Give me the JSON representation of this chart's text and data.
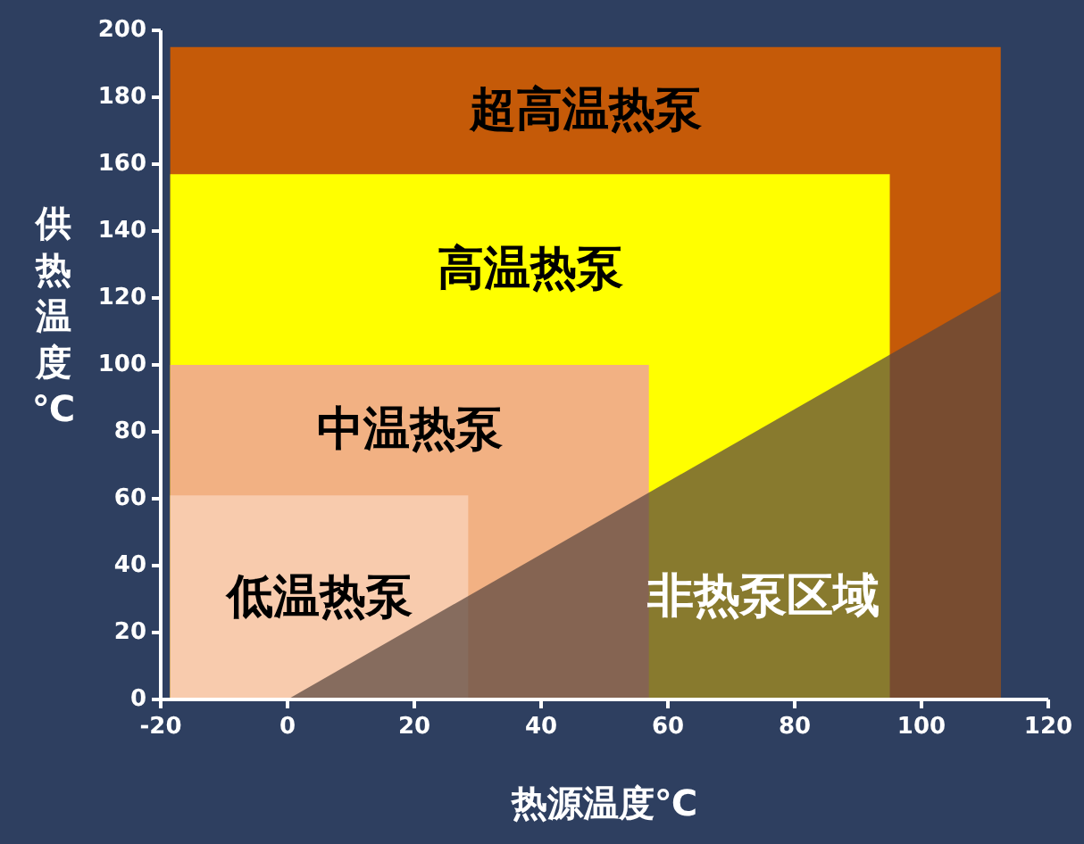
{
  "chart_data": {
    "type": "area",
    "xlabel": "热源温度℃",
    "ylabel": "供热温度℃",
    "xlim": [
      -20,
      120
    ],
    "xticks": [
      -20,
      0,
      20,
      40,
      60,
      80,
      100,
      120
    ],
    "ylim": [
      0,
      200
    ],
    "yticks": [
      0,
      20,
      40,
      60,
      80,
      100,
      120,
      140,
      160,
      180,
      200
    ],
    "grid": false,
    "series": [
      {
        "name": "超高温热泵",
        "color": "#c55a08",
        "x": [
          -18.5,
          112.5
        ],
        "values": [
          195,
          195
        ]
      },
      {
        "name": "高温热泵",
        "color": "#ffff00",
        "x": [
          -18.5,
          95
        ],
        "values": [
          157,
          157
        ]
      },
      {
        "name": "中温热泵",
        "color": "#f2b183",
        "x": [
          -18.5,
          57
        ],
        "values": [
          100,
          100
        ]
      },
      {
        "name": "低温热泵",
        "color": "#f8cbad",
        "x": [
          -18.5,
          28.5
        ],
        "values": [
          61,
          61
        ]
      },
      {
        "name": "非热泵区域",
        "color": "#5a4640",
        "x": [
          0,
          112.5
        ],
        "values": [
          0,
          122
        ]
      }
    ]
  }
}
